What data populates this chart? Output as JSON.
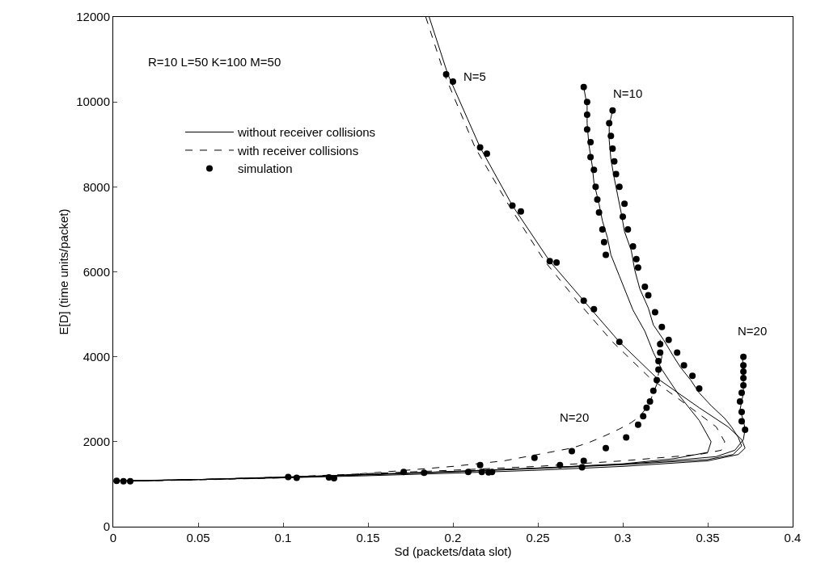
{
  "chart_data": {
    "type": "line",
    "xlabel": "Sd (packets/data slot)",
    "ylabel": "E[D] (time units/packet)",
    "xlim": [
      0,
      0.4
    ],
    "xticks": [
      0,
      0.05,
      0.1,
      0.15,
      0.2,
      0.25,
      0.3,
      0.35,
      0.4
    ],
    "ylim": [
      0,
      12000
    ],
    "yticks": [
      0,
      2000,
      4000,
      6000,
      8000,
      10000,
      12000
    ],
    "legend": "top left",
    "marker": "none",
    "annotations": [
      "R=10 L=50 K=100 M=50",
      "N=5",
      "N=10",
      "N=20",
      "N=20"
    ],
    "series": [
      {
        "name": "without receiver collisions",
        "color": "#000000",
        "line_style": "solid",
        "x": [
          0.186,
          0.197,
          0.216,
          0.235,
          0.257,
          0.277,
          0.298,
          0.32,
          0.345,
          0.362,
          0.37,
          0.372,
          0.368,
          0.35,
          0.3,
          0.25,
          0.2,
          0.15,
          0.1,
          0.05,
          0.002
        ],
        "values": [
          12000,
          10650,
          8930,
          7560,
          6250,
          5320,
          4350,
          3500,
          2800,
          2350,
          2050,
          1850,
          1700,
          1550,
          1420,
          1330,
          1260,
          1200,
          1150,
          1110,
          1080
        ]
      },
      {
        "name": "with receiver collisions",
        "color": "#000000",
        "line_style": "dashed",
        "x": [
          0.184,
          0.195,
          0.213,
          0.233,
          0.254,
          0.273,
          0.294,
          0.316,
          0.34,
          0.355,
          0.36,
          0.358,
          0.345,
          0.3,
          0.25,
          0.2,
          0.15,
          0.1,
          0.05,
          0.002
        ],
        "values": [
          12000,
          10650,
          8930,
          7560,
          6250,
          5320,
          4350,
          3500,
          2800,
          2350,
          2000,
          1800,
          1700,
          1550,
          1420,
          1330,
          1250,
          1170,
          1110,
          1080
        ]
      },
      {
        "color": "#000000",
        "line_style": "solid",
        "x": [
          0.277,
          0.279,
          0.279,
          0.28,
          0.282,
          0.283,
          0.286,
          0.288,
          0.291,
          0.293,
          0.298,
          0.302,
          0.306,
          0.313,
          0.318,
          0.323,
          0.333,
          0.345,
          0.352,
          0.35,
          0.33,
          0.3,
          0.25,
          0.2,
          0.15,
          0.1,
          0.05,
          0.005
        ],
        "values": [
          10350,
          9900,
          9500,
          9000,
          8500,
          8100,
          7600,
          7200,
          6800,
          6400,
          5900,
          5500,
          5100,
          4600,
          4100,
          3700,
          3100,
          2500,
          2000,
          1750,
          1600,
          1480,
          1380,
          1300,
          1230,
          1160,
          1110,
          1080
        ]
      },
      {
        "color": "#000000",
        "line_style": "solid",
        "x": [
          0.294,
          0.292,
          0.292,
          0.293,
          0.295,
          0.297,
          0.299,
          0.301,
          0.305,
          0.307,
          0.31,
          0.315,
          0.318,
          0.324,
          0.33,
          0.334,
          0.34,
          0.345,
          0.352,
          0.36,
          0.364,
          0.368,
          0.37,
          0.365,
          0.35,
          0.3,
          0.25,
          0.2,
          0.15,
          0.1,
          0.05,
          0.01
        ],
        "values": [
          9800,
          9450,
          9100,
          8650,
          8200,
          7800,
          7400,
          6950,
          6500,
          6050,
          5600,
          5150,
          4750,
          4400,
          4000,
          3750,
          3450,
          3150,
          2850,
          2550,
          2350,
          2100,
          1900,
          1700,
          1580,
          1460,
          1370,
          1290,
          1220,
          1160,
          1110,
          1070
        ]
      },
      {
        "color": "#000000",
        "line_style": "solid",
        "x": [
          0.37,
          0.371,
          0.371,
          0.371,
          0.371,
          0.371,
          0.37,
          0.369,
          0.371,
          0.372,
          0.371,
          0.366,
          0.355,
          0.33,
          0.3,
          0.25,
          0.2,
          0.15,
          0.1,
          0.05,
          0.005
        ],
        "values": [
          4050,
          3800,
          3650,
          3500,
          3350,
          3150,
          2950,
          2750,
          2500,
          2300,
          2050,
          1800,
          1650,
          1560,
          1470,
          1380,
          1300,
          1230,
          1170,
          1110,
          1070
        ]
      },
      {
        "color": "#000000",
        "line_style": "dashed",
        "x": [
          0.322,
          0.322,
          0.323,
          0.322,
          0.321,
          0.32,
          0.318,
          0.316,
          0.313,
          0.31,
          0.305,
          0.298,
          0.29,
          0.28,
          0.27,
          0.25,
          0.23,
          0.2,
          0.17,
          0.13,
          0.1,
          0.05,
          0.005
        ],
        "values": [
          4400,
          4200,
          4000,
          3800,
          3600,
          3350,
          3150,
          2950,
          2750,
          2600,
          2450,
          2300,
          2150,
          1980,
          1850,
          1700,
          1550,
          1420,
          1320,
          1200,
          1150,
          1100,
          1070
        ]
      },
      {
        "name": "simulation",
        "type": "scatter",
        "marker": "circle",
        "color": "#000000",
        "x": [
          0.196,
          0.2,
          0.216,
          0.22,
          0.235,
          0.24,
          0.257,
          0.261,
          0.277,
          0.283,
          0.298,
          0.277,
          0.279,
          0.279,
          0.279,
          0.281,
          0.281,
          0.283,
          0.284,
          0.285,
          0.286,
          0.288,
          0.289,
          0.29,
          0.294,
          0.292,
          0.293,
          0.294,
          0.295,
          0.296,
          0.298,
          0.301,
          0.3,
          0.303,
          0.306,
          0.308,
          0.309,
          0.313,
          0.315,
          0.319,
          0.323,
          0.327,
          0.332,
          0.336,
          0.341,
          0.345,
          0.371,
          0.371,
          0.371,
          0.371,
          0.371,
          0.37,
          0.369,
          0.37,
          0.37,
          0.372,
          0.322,
          0.322,
          0.321,
          0.321,
          0.32,
          0.318,
          0.316,
          0.314,
          0.312,
          0.309,
          0.002,
          0.006,
          0.01,
          0.103,
          0.108,
          0.127,
          0.13,
          0.171,
          0.183,
          0.209,
          0.216,
          0.217,
          0.221,
          0.223,
          0.248,
          0.263,
          0.27,
          0.276,
          0.277,
          0.29,
          0.302
        ],
        "values": [
          10650,
          10480,
          8930,
          8780,
          7560,
          7420,
          6250,
          6220,
          5320,
          5120,
          4350,
          10350,
          10000,
          9700,
          9350,
          9050,
          8700,
          8400,
          8000,
          7700,
          7400,
          7000,
          6700,
          6400,
          9800,
          9500,
          9200,
          8900,
          8600,
          8300,
          8000,
          7600,
          7300,
          7000,
          6600,
          6300,
          6100,
          5650,
          5450,
          5050,
          4700,
          4400,
          4100,
          3800,
          3550,
          3250,
          4000,
          3800,
          3650,
          3500,
          3330,
          3150,
          2950,
          2700,
          2480,
          2280,
          4300,
          4100,
          3900,
          3700,
          3450,
          3200,
          2950,
          2800,
          2600,
          2400,
          1080,
          1070,
          1070,
          1170,
          1150,
          1160,
          1140,
          1290,
          1270,
          1290,
          1450,
          1290,
          1280,
          1290,
          1620,
          1450,
          1780,
          1400,
          1550,
          1850,
          2100
        ]
      }
    ]
  }
}
